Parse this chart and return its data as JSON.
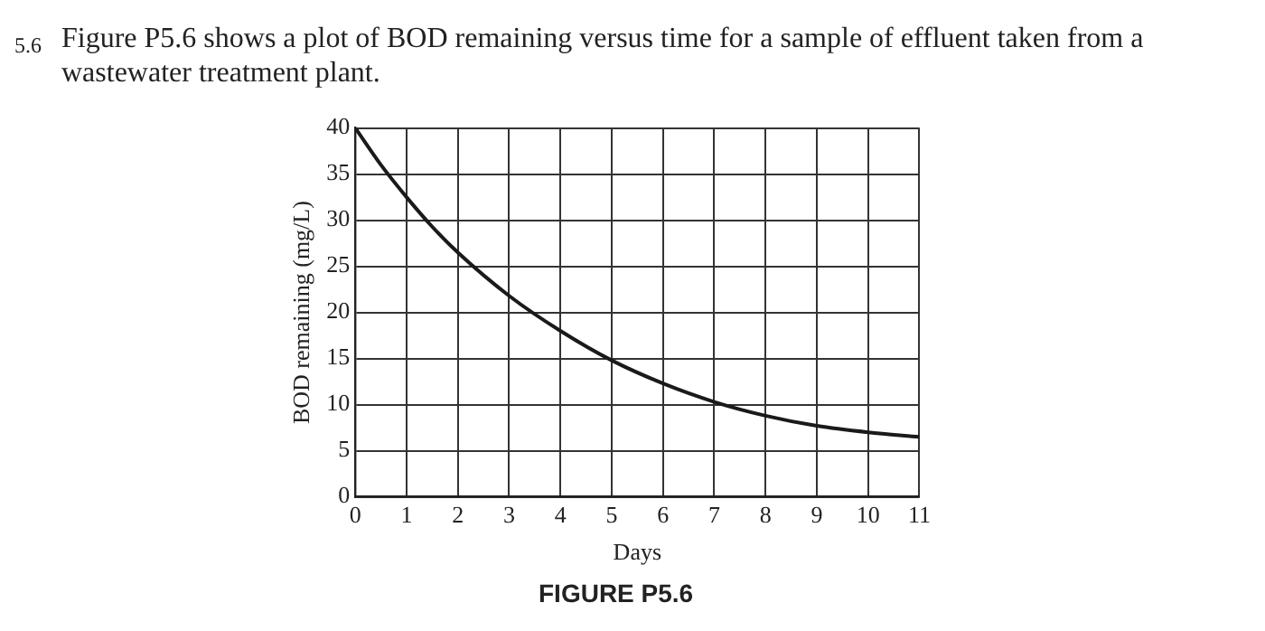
{
  "chart_data": {
    "type": "line",
    "title": "Figure P5.6 shows a plot of BOD remaining versus time for a sample of effluent taken from a wastewater treatment plant.",
    "annotations": [
      "5.6",
      "FIGURE P5.6"
    ],
    "xlabel": "Days",
    "ylabel": "BOD remaining (mg/L)",
    "x": [
      0,
      0.5,
      1,
      1.5,
      2,
      3,
      4,
      5,
      6,
      7,
      8,
      9,
      10,
      11
    ],
    "series": [
      {
        "color": "#1a1a1a",
        "values": [
          40,
          36,
          32.5,
          29.3,
          26.5,
          21.8,
          18,
          14.8,
          12.3,
          10.3,
          8.8,
          7.7,
          7,
          6.5
        ]
      }
    ],
    "xlim": [
      0,
      11
    ],
    "xticks": [
      0,
      1,
      2,
      3,
      4,
      5,
      6,
      7,
      8,
      9,
      10,
      11
    ],
    "ylim": [
      0,
      40
    ],
    "yticks": [
      0,
      5,
      10,
      15,
      20,
      25,
      30,
      35,
      40
    ],
    "grid": true,
    "legend": false,
    "marker": "none",
    "line_style": "solid"
  }
}
